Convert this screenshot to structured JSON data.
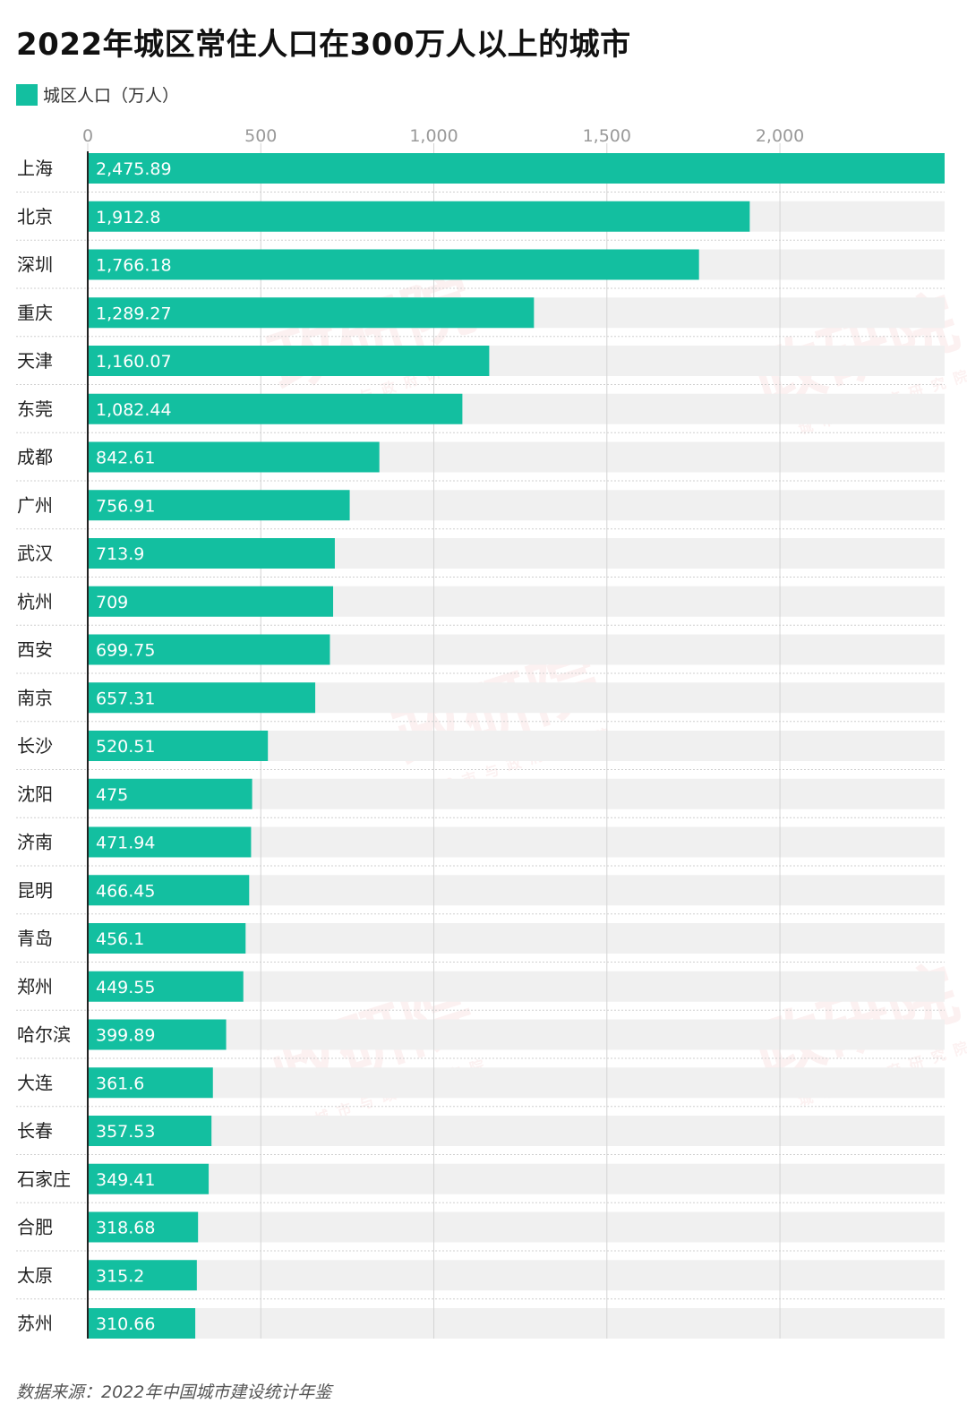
{
  "chart_data": {
    "type": "bar",
    "orientation": "horizontal",
    "title": "2022年城区常住人口在300万人以上的城市",
    "legend": {
      "label": "城区人口（万人）",
      "placement": "top-left"
    },
    "categories": [
      "上海",
      "北京",
      "深圳",
      "重庆",
      "天津",
      "东莞",
      "成都",
      "广州",
      "武汉",
      "杭州",
      "西安",
      "南京",
      "长沙",
      "沈阳",
      "济南",
      "昆明",
      "青岛",
      "郑州",
      "哈尔滨",
      "大连",
      "长春",
      "石家庄",
      "合肥",
      "太原",
      "苏州"
    ],
    "value_labels": [
      "2,475.89",
      "1,912.8",
      "1,766.18",
      "1,289.27",
      "1,160.07",
      "1,082.44",
      "842.61",
      "756.91",
      "713.9",
      "709",
      "699.75",
      "657.31",
      "520.51",
      "475",
      "471.94",
      "466.45",
      "456.1",
      "449.55",
      "399.89",
      "361.6",
      "357.53",
      "349.41",
      "318.68",
      "315.2",
      "310.66"
    ],
    "values": [
      2475.89,
      1912.8,
      1766.18,
      1289.27,
      1160.07,
      1082.44,
      842.61,
      756.91,
      713.9,
      709,
      699.75,
      657.31,
      520.51,
      475,
      471.94,
      466.45,
      456.1,
      449.55,
      399.89,
      361.6,
      357.53,
      349.41,
      318.68,
      315.2,
      310.66
    ],
    "xlim": [
      0,
      2475.89
    ],
    "x_ticks": [
      0,
      500,
      1000,
      1500,
      2000
    ],
    "x_tick_labels": [
      "0",
      "500",
      "1,000",
      "1,500",
      "2,000"
    ],
    "grid": true,
    "bar_color": "#13bfa0",
    "track_color": "#f0f0f0"
  },
  "source": "数据来源：2022年中国城市建设统计年鉴",
  "watermark": {
    "main": "政研院",
    "sub": "城市与政府研究院"
  }
}
